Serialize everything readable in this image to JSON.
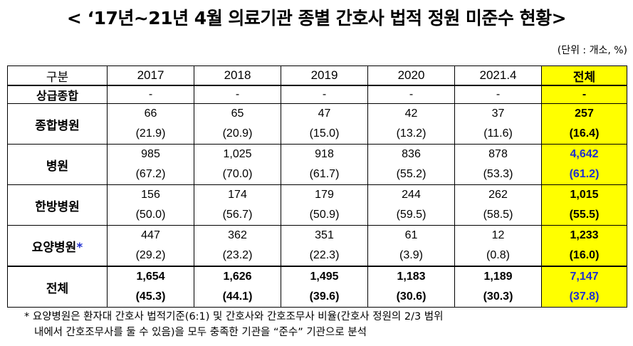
{
  "title": "< ‘17년~21년 4월 의료기관 종별 간호사 법적 정원 미준수 현황>",
  "unit": "(단위 : 개소, %)",
  "table": {
    "header": [
      "구분",
      "2017",
      "2018",
      "2019",
      "2020",
      "2021.4",
      "전체"
    ],
    "sanggeup": {
      "label": "상급종합",
      "cells": [
        "-",
        "-",
        "-",
        "-",
        "-",
        "-"
      ]
    },
    "rows": [
      {
        "label": "종합병원",
        "values": [
          "66",
          "65",
          "47",
          "42",
          "37",
          "257"
        ],
        "pcts": [
          "(21.9)",
          "(20.9)",
          "(15.0)",
          "(13.2)",
          "(11.6)",
          "(16.4)"
        ]
      },
      {
        "label": "병원",
        "values": [
          "985",
          "1,025",
          "918",
          "836",
          "878",
          "4,642"
        ],
        "pcts": [
          "(67.2)",
          "(70.0)",
          "(61.7)",
          "(55.2)",
          "(53.3)",
          "(61.2)"
        ]
      },
      {
        "label": "한방병원",
        "values": [
          "156",
          "174",
          "179",
          "244",
          "262",
          "1,015"
        ],
        "pcts": [
          "(50.0)",
          "(56.7)",
          "(50.9)",
          "(59.5)",
          "(58.5)",
          "(55.5)"
        ]
      },
      {
        "label": "요양병원",
        "star": "*",
        "values": [
          "447",
          "362",
          "351",
          "61",
          "12",
          "1,233"
        ],
        "pcts": [
          "(29.2)",
          "(23.2)",
          "(22.3)",
          "(3.9)",
          "(0.8)",
          "(16.0)"
        ]
      },
      {
        "label": "전체",
        "values": [
          "1,654",
          "1,626",
          "1,495",
          "1,183",
          "1,189",
          "7,147"
        ],
        "pcts": [
          "(45.3)",
          "(44.1)",
          "(39.6)",
          "(30.6)",
          "(30.3)",
          "(37.8)"
        ]
      }
    ]
  },
  "note": {
    "line1": "* 요양병원은 환자대 간호사 법적기준(6:1) 및 간호사와 간호조무사 비율(간호사 정원의 2/3 범위",
    "line2": "내에서 간호조무사를 둘 수 있음)을 모두 충족한 기관을 “준수” 기관으로 분석"
  },
  "colors": {
    "total_column_bg": "#ffff00",
    "highlight_blue": "#1f2fd0"
  }
}
